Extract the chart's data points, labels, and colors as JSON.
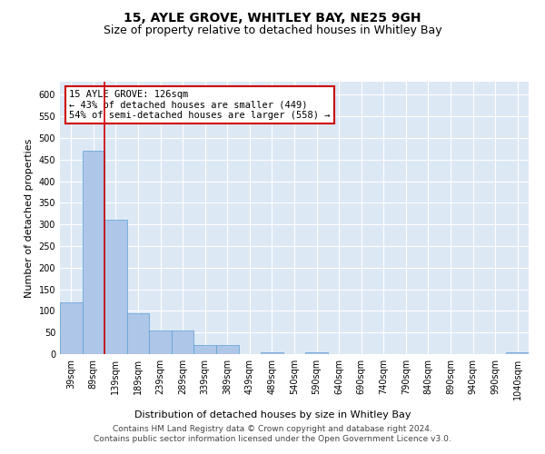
{
  "title": "15, AYLE GROVE, WHITLEY BAY, NE25 9GH",
  "subtitle": "Size of property relative to detached houses in Whitley Bay",
  "xlabel": "Distribution of detached houses by size in Whitley Bay",
  "ylabel": "Number of detached properties",
  "footer_line1": "Contains HM Land Registry data © Crown copyright and database right 2024.",
  "footer_line2": "Contains public sector information licensed under the Open Government Licence v3.0.",
  "annotation_line1": "15 AYLE GROVE: 126sqm",
  "annotation_line2": "← 43% of detached houses are smaller (449)",
  "annotation_line3": "54% of semi-detached houses are larger (558) →",
  "bar_categories": [
    "39sqm",
    "89sqm",
    "139sqm",
    "189sqm",
    "239sqm",
    "289sqm",
    "339sqm",
    "389sqm",
    "439sqm",
    "489sqm",
    "540sqm",
    "590sqm",
    "640sqm",
    "690sqm",
    "740sqm",
    "790sqm",
    "840sqm",
    "890sqm",
    "940sqm",
    "990sqm",
    "1040sqm"
  ],
  "bar_values": [
    120,
    470,
    310,
    95,
    55,
    55,
    20,
    20,
    0,
    5,
    0,
    5,
    0,
    0,
    0,
    0,
    0,
    0,
    0,
    0,
    5
  ],
  "bar_color": "#aec6e8",
  "bar_edge_color": "#5a9fd4",
  "vline_color": "#cc0000",
  "vline_x_pos": 1.5,
  "annotation_box_color": "#cc0000",
  "background_color": "#dde8f5",
  "plot_bg_color": "#dde8f5",
  "ylim": [
    0,
    630
  ],
  "yticks": [
    0,
    50,
    100,
    150,
    200,
    250,
    300,
    350,
    400,
    450,
    500,
    550,
    600
  ],
  "title_fontsize": 10,
  "subtitle_fontsize": 9,
  "ylabel_fontsize": 8,
  "xlabel_fontsize": 8,
  "tick_fontsize": 7,
  "annotation_fontsize": 7.5,
  "footer_fontsize": 6.5
}
